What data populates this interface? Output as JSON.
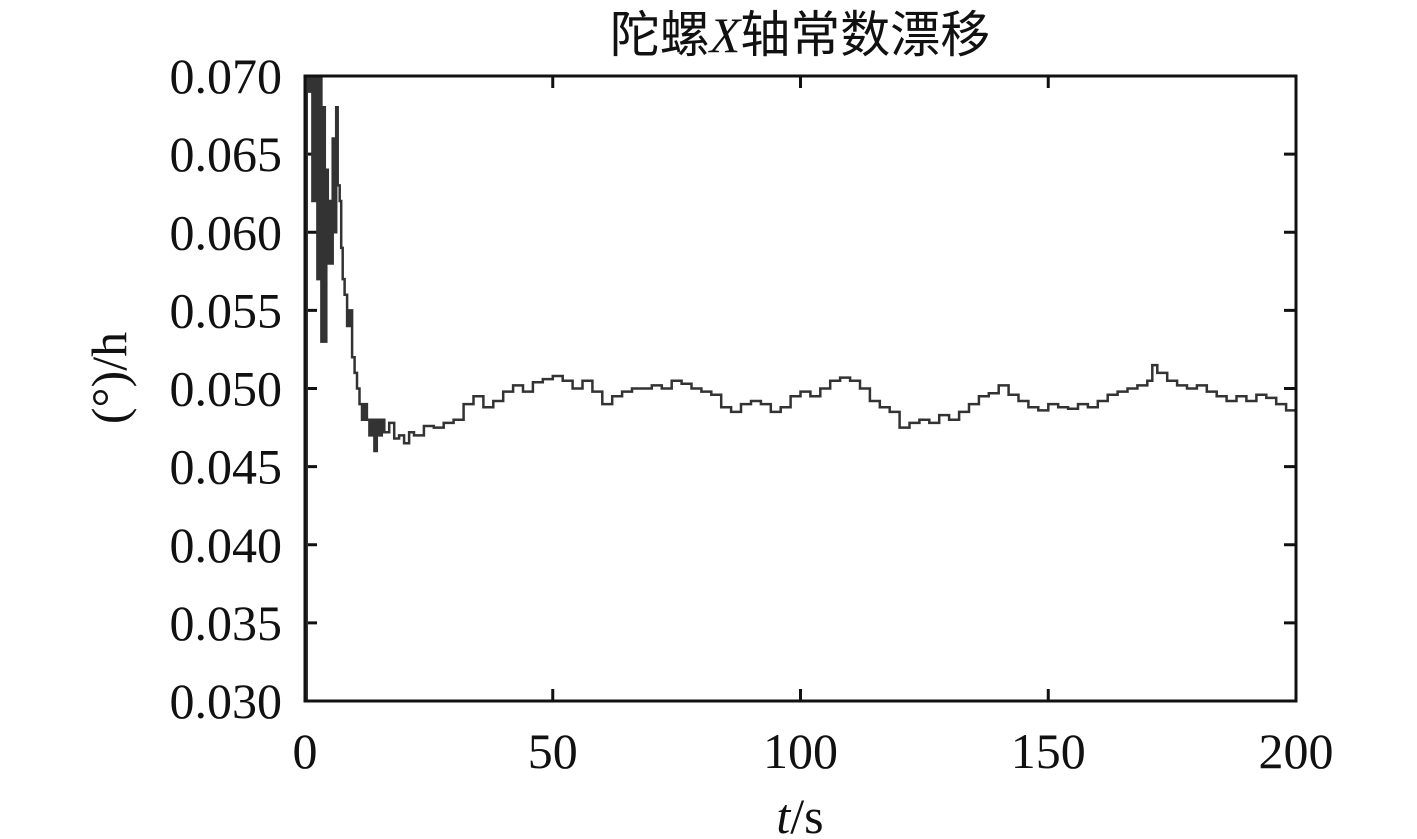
{
  "chart_data": {
    "type": "line",
    "title": {
      "prefix": "陀螺",
      "italic": "X",
      "suffix": "轴常数漂移"
    },
    "xlabel": {
      "italic": "t",
      "rest": "/s"
    },
    "ylabel": "(°)/h",
    "xlim": [
      0,
      200
    ],
    "ylim": [
      0.03,
      0.07
    ],
    "x_ticks": [
      0,
      50,
      100,
      150,
      200
    ],
    "x_tick_labels": [
      "0",
      "50",
      "100",
      "150",
      "200"
    ],
    "y_ticks": [
      0.03,
      0.035,
      0.04,
      0.045,
      0.05,
      0.055,
      0.06,
      0.065,
      0.07
    ],
    "y_tick_labels": [
      "0.030",
      "0.035",
      "0.040",
      "0.045",
      "0.050",
      "0.055",
      "0.060",
      "0.065",
      "0.070"
    ],
    "grid": false,
    "line_color": "#333333",
    "series": [
      {
        "x": [
          0,
          0.3,
          0.6,
          1.0,
          1.5,
          2.0,
          2.5,
          3.0,
          3.3,
          3.6,
          4.0,
          4.3,
          4.6,
          5.0,
          5.3,
          5.6,
          6.0,
          6.3,
          6.6,
          7.0,
          7.3,
          7.6,
          8.0,
          8.5,
          9.0,
          9.5,
          10.0,
          10.5,
          11.0,
          11.5,
          12.0,
          12.5,
          13.0,
          13.5,
          14.0,
          14.5,
          15.0,
          15.5,
          16.0,
          17.0,
          18.0,
          19.0,
          20.0,
          21.0,
          22.0,
          24.0,
          26.0,
          28.0,
          30.0,
          32.0,
          34.0,
          36.0,
          38.0,
          40.0,
          42.0,
          44.0,
          46.0,
          48.0,
          50.0,
          52.0,
          54.0,
          56.0,
          58.0,
          60.0,
          62.0,
          64.0,
          66.0,
          68.0,
          70.0,
          72.0,
          74.0,
          76.0,
          78.0,
          80.0,
          82.0,
          84.0,
          86.0,
          88.0,
          90.0,
          92.0,
          94.0,
          96.0,
          98.0,
          100.0,
          102.0,
          104.0,
          106.0,
          108.0,
          110.0,
          112.0,
          114.0,
          116.0,
          118.0,
          120.0,
          122.0,
          124.0,
          126.0,
          128.0,
          130.0,
          132.0,
          134.0,
          136.0,
          138.0,
          140.0,
          142.0,
          144.0,
          146.0,
          148.0,
          150.0,
          152.0,
          154.0,
          156.0,
          158.0,
          160.0,
          162.0,
          164.0,
          166.0,
          168.0,
          170.0,
          171.0,
          172.0,
          174.0,
          176.0,
          178.0,
          180.0,
          182.0,
          184.0,
          186.0,
          188.0,
          190.0,
          192.0,
          194.0,
          196.0,
          198.0,
          200.0
        ],
        "y": [
          0.03,
          0.07,
          0.069,
          0.07,
          0.062,
          0.07,
          0.057,
          0.07,
          0.053,
          0.068,
          0.053,
          0.064,
          0.058,
          0.062,
          0.058,
          0.066,
          0.06,
          0.068,
          0.063,
          0.062,
          0.059,
          0.057,
          0.056,
          0.054,
          0.055,
          0.052,
          0.051,
          0.05,
          0.049,
          0.048,
          0.049,
          0.048,
          0.047,
          0.048,
          0.046,
          0.048,
          0.047,
          0.048,
          0.0472,
          0.0478,
          0.0468,
          0.047,
          0.0465,
          0.0472,
          0.047,
          0.0476,
          0.0475,
          0.0478,
          0.048,
          0.049,
          0.0495,
          0.0488,
          0.0492,
          0.0498,
          0.0502,
          0.0498,
          0.0504,
          0.0506,
          0.0508,
          0.0505,
          0.05,
          0.0505,
          0.0498,
          0.049,
          0.0495,
          0.0498,
          0.05,
          0.05,
          0.0502,
          0.05,
          0.0505,
          0.0503,
          0.05,
          0.0498,
          0.0496,
          0.0488,
          0.0485,
          0.049,
          0.0492,
          0.049,
          0.0485,
          0.0488,
          0.0495,
          0.0498,
          0.0495,
          0.05,
          0.0505,
          0.0507,
          0.0505,
          0.05,
          0.0492,
          0.0488,
          0.0485,
          0.0475,
          0.0478,
          0.048,
          0.0478,
          0.0483,
          0.048,
          0.0485,
          0.049,
          0.0495,
          0.0497,
          0.0502,
          0.0496,
          0.0492,
          0.0488,
          0.0486,
          0.049,
          0.0488,
          0.0487,
          0.049,
          0.0488,
          0.0492,
          0.0496,
          0.0498,
          0.05,
          0.0502,
          0.0505,
          0.0515,
          0.051,
          0.0505,
          0.0502,
          0.05,
          0.0502,
          0.0498,
          0.0495,
          0.0492,
          0.0495,
          0.0492,
          0.0496,
          0.0494,
          0.049,
          0.0486,
          0.049
        ]
      }
    ]
  }
}
